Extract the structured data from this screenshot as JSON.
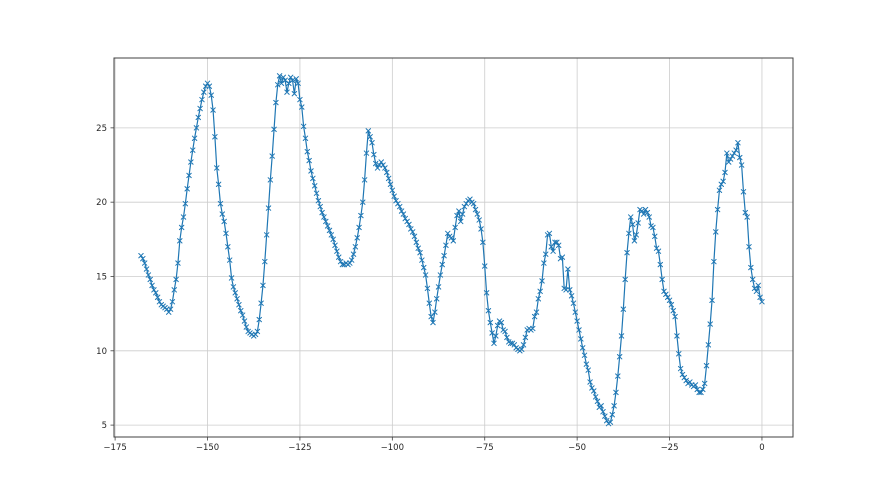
{
  "figure": {
    "kind": "matplotlib-line-plot",
    "background": "#ffffff",
    "grid_color": "#cccccc",
    "spine_color": "#404040",
    "tick_label_color": "#262626"
  },
  "chart_data": {
    "type": "line",
    "title": "",
    "xlabel": "",
    "ylabel": "",
    "grid": true,
    "legend": null,
    "line_color": "#1f77b4",
    "marker": "x",
    "marker_color": "#1f77b4",
    "xlim": [
      -175.3,
      8.4
    ],
    "ylim": [
      4.2,
      29.7
    ],
    "xticks": [
      {
        "value": -175,
        "label": "−175"
      },
      {
        "value": -150,
        "label": "−150"
      },
      {
        "value": -125,
        "label": "−125"
      },
      {
        "value": -100,
        "label": "−100"
      },
      {
        "value": -75,
        "label": "−75"
      },
      {
        "value": -50,
        "label": "−50"
      },
      {
        "value": -25,
        "label": "−25"
      },
      {
        "value": 0,
        "label": "0"
      }
    ],
    "yticks": [
      {
        "value": 5,
        "label": "5"
      },
      {
        "value": 10,
        "label": "10"
      },
      {
        "value": 15,
        "label": "15"
      },
      {
        "value": 20,
        "label": "20"
      },
      {
        "value": 25,
        "label": "25"
      }
    ],
    "series": [
      {
        "name": "series-0",
        "x_start": -168.0,
        "x_step": 0.5,
        "y": [
          16.4,
          16.2,
          15.9,
          15.5,
          15.1,
          14.8,
          14.4,
          14.1,
          13.9,
          13.6,
          13.3,
          13.1,
          13.0,
          12.9,
          12.8,
          12.6,
          12.8,
          13.3,
          14.1,
          14.8,
          15.9,
          17.4,
          18.3,
          19.0,
          19.9,
          20.9,
          21.8,
          22.7,
          23.5,
          24.3,
          25.0,
          25.7,
          26.3,
          26.9,
          27.4,
          27.8,
          28.0,
          27.8,
          27.2,
          26.2,
          24.4,
          22.3,
          21.2,
          19.9,
          19.2,
          18.7,
          17.9,
          17.0,
          16.1,
          14.9,
          14.3,
          13.9,
          13.5,
          13.1,
          12.7,
          12.4,
          12.0,
          11.6,
          11.3,
          11.2,
          11.1,
          11.0,
          11.1,
          11.3,
          12.1,
          13.2,
          14.4,
          16.0,
          17.8,
          19.6,
          21.5,
          23.1,
          24.9,
          26.7,
          27.9,
          28.5,
          28.0,
          28.4,
          28.2,
          27.4,
          28.0,
          28.4,
          28.2,
          27.3,
          28.3,
          28.0,
          26.9,
          26.4,
          25.1,
          24.3,
          23.4,
          22.8,
          22.1,
          21.6,
          21.1,
          20.6,
          20.1,
          19.7,
          19.3,
          19.0,
          18.7,
          18.4,
          18.1,
          17.8,
          17.5,
          17.1,
          16.7,
          16.3,
          16.0,
          15.8,
          15.8,
          15.9,
          15.8,
          15.9,
          16.1,
          16.5,
          17.0,
          17.6,
          18.3,
          19.1,
          20.0,
          21.5,
          23.3,
          24.8,
          24.4,
          24.0,
          23.2,
          22.6,
          22.3,
          22.5,
          22.7,
          22.5,
          22.3,
          22.0,
          21.6,
          21.2,
          20.8,
          20.4,
          20.1,
          19.9,
          19.7,
          19.4,
          19.2,
          18.9,
          18.7,
          18.5,
          18.2,
          18.0,
          17.7,
          17.3,
          16.9,
          16.6,
          16.1,
          15.6,
          15.1,
          14.2,
          13.2,
          12.3,
          11.9,
          12.6,
          13.5,
          14.3,
          15.1,
          15.8,
          16.4,
          17.1,
          17.9,
          17.7,
          17.6,
          17.4,
          18.3,
          19.1,
          19.4,
          18.7,
          19.2,
          19.7,
          19.9,
          20.1,
          20.2,
          20.0,
          19.9,
          19.5,
          19.2,
          18.8,
          18.2,
          17.3,
          15.7,
          13.9,
          12.7,
          11.9,
          11.2,
          10.5,
          11.0,
          11.7,
          12.0,
          11.9,
          11.4,
          11.3,
          10.9,
          10.6,
          10.5,
          10.5,
          10.4,
          10.2,
          10.1,
          10.0,
          10.1,
          10.4,
          10.9,
          11.4,
          11.5,
          11.4,
          11.5,
          12.3,
          12.6,
          13.5,
          14.0,
          14.7,
          15.9,
          16.5,
          17.8,
          17.9,
          17.0,
          16.7,
          17.3,
          17.3,
          17.1,
          16.2,
          16.3,
          14.2,
          14.1,
          15.5,
          14.1,
          13.7,
          13.2,
          12.6,
          12.0,
          11.4,
          10.8,
          10.2,
          9.7,
          9.1,
          8.7,
          7.9,
          7.5,
          7.3,
          6.9,
          6.6,
          6.2,
          6.3,
          5.9,
          5.6,
          5.3,
          5.1,
          5.2,
          5.7,
          6.3,
          7.2,
          8.3,
          9.6,
          11.0,
          12.8,
          14.8,
          16.6,
          17.9,
          19.0,
          18.5,
          17.4,
          17.8,
          18.6,
          19.5,
          19.4,
          19.2,
          19.5,
          19.3,
          19.0,
          18.4,
          18.3,
          17.7,
          16.9,
          16.7,
          15.8,
          14.8,
          14.0,
          13.8,
          13.6,
          13.4,
          13.1,
          12.7,
          12.3,
          11.0,
          9.8,
          8.8,
          8.4,
          8.2,
          8.0,
          7.8,
          7.9,
          7.7,
          7.6,
          7.7,
          7.4,
          7.2,
          7.2,
          7.4,
          7.8,
          9.0,
          10.4,
          11.8,
          13.4,
          16.0,
          18.0,
          19.5,
          20.8,
          21.2,
          21.4,
          22.0,
          23.3,
          22.7,
          22.9,
          23.1,
          23.3,
          23.5,
          24.0,
          23.0,
          22.5,
          20.7,
          19.3,
          19.0,
          17.0,
          15.6,
          14.8,
          14.2,
          14.0,
          14.4,
          13.6,
          13.3
        ]
      }
    ]
  }
}
